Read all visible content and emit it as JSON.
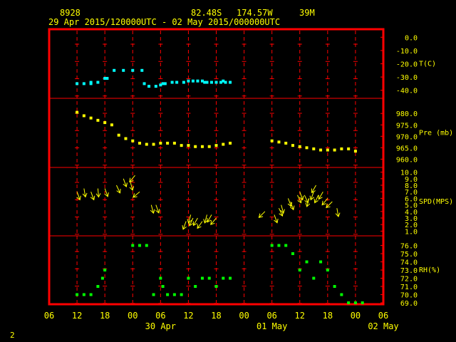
{
  "header": {
    "station_id": "8928",
    "lat": "82.48S",
    "lon": "174.57W",
    "elev": "39M",
    "range": "29 Apr 2015/120000UTC - 02 May 2015/000000UTC"
  },
  "footer": {
    "page": "2"
  },
  "colors": {
    "background": "#000000",
    "frame": "#ff0000",
    "grid": "#ff0000",
    "label": "#ffff00",
    "temp": "#00ffff",
    "pres": "#ffff00",
    "wind": "#ffff00",
    "rh": "#00ff00"
  },
  "chart_data": {
    "type": "scatter",
    "x_axis": {
      "unit": "hours",
      "start_hour": 6,
      "end_hour": 78,
      "tick_every": 6,
      "tick_labels": [
        "06",
        "12",
        "18",
        "00",
        "06",
        "12",
        "18",
        "00",
        "06",
        "12",
        "18",
        "00",
        "06"
      ],
      "day_labels": [
        {
          "text": "30 Apr",
          "hour": 30
        },
        {
          "text": "01 May",
          "hour": 54
        },
        {
          "text": "02 May",
          "hour": 78
        }
      ]
    },
    "panels": [
      {
        "id": "temp",
        "label": "T(C)",
        "range": [
          -45,
          5
        ],
        "ticks": [
          "0.0",
          "-10.0",
          "-20.0",
          "-30.0",
          "-40.0"
        ],
        "tick_values": [
          0,
          -10,
          -20,
          -30,
          -40
        ],
        "series": [
          {
            "marker": "square",
            "x": [
              15,
              12,
              13.5,
              15,
              16.5,
              18,
              18.5,
              20,
              22,
              24,
              26,
              26.5,
              27.5,
              29,
              30,
              30.5,
              31,
              32.5,
              33.5,
              35,
              36,
              37,
              38,
              39,
              39.5,
              40,
              41,
              42,
              43,
              43.5,
              44,
              45
            ],
            "y": [
              -35,
              -35,
              -35,
              -34,
              -34,
              -31,
              -31,
              -25,
              -25,
              -25,
              -25,
              -35,
              -37,
              -37,
              -36,
              -35,
              -35,
              -34,
              -34,
              -34,
              -33,
              -33,
              -33,
              -33,
              -34,
              -34,
              -34,
              -34,
              -34,
              -33,
              -34,
              -34
            ]
          }
        ]
      },
      {
        "id": "pres",
        "label": "Pre (mb)",
        "range": [
          957,
          986
        ],
        "ticks": [
          "980.0",
          "975.0",
          "970.0",
          "965.0",
          "960.0"
        ],
        "tick_values": [
          980,
          975,
          970,
          965,
          960
        ],
        "series": [
          {
            "marker": "square",
            "x": [
              12,
              13.5,
              15,
              16.5,
              18,
              19.5,
              21,
              22.5,
              24,
              25.5,
              27,
              28.5,
              30,
              31.5,
              33,
              34.5,
              36,
              37.5,
              39,
              40.5,
              42,
              43.5,
              45,
              54,
              55.5,
              57,
              58.5,
              60,
              61.5,
              63,
              64.5,
              66,
              67.5,
              69,
              70.5,
              72
            ],
            "y": [
              980.5,
              979,
              978,
              977,
              976,
              975,
              970.5,
              969,
              968,
              967,
              966.5,
              966.5,
              967,
              967,
              967,
              966,
              966,
              965.5,
              965.5,
              965.5,
              966,
              966.5,
              967,
              968,
              967.5,
              967,
              966,
              965.5,
              965,
              964.5,
              964,
              964,
              964,
              964.5,
              964.5,
              963.5
            ]
          }
        ]
      },
      {
        "id": "wind",
        "label": "SPD(MPS)",
        "range": [
          0.5,
          10.5
        ],
        "ticks": [
          "10.0",
          "9.0",
          "8.0",
          "7.0",
          "6.0",
          "5.0",
          "4.0",
          "3.0",
          "2.0",
          "1.0"
        ],
        "tick_values": [
          10,
          9,
          8,
          7,
          6,
          5,
          4,
          3,
          2,
          1
        ],
        "series": [
          {
            "marker": "arrow",
            "x": [
              12,
              13.5,
              15,
              16.5,
              18,
              20.5,
              22,
              23.5,
              24.5,
              25.5,
              28,
              29,
              35.5,
              36.5,
              37,
              38,
              39,
              40,
              41,
              42,
              52.5,
              54.5,
              55.5,
              56,
              57.5,
              58,
              59.5,
              60,
              61,
              62,
              63,
              63.5,
              64,
              65,
              66,
              67,
              68
            ],
            "speed": [
              7,
              7.5,
              7,
              7.5,
              7.5,
              8,
              9,
              8.5,
              9.5,
              7,
              5,
              5,
              2.5,
              3.5,
              3,
              3,
              2.5,
              3.5,
              3.5,
              3,
              4,
              3.5,
              4.5,
              5,
              6,
              5.5,
              6.5,
              7,
              6.5,
              6,
              7,
              8,
              6.5,
              7,
              6,
              5.5,
              4.5
            ],
            "dir_deg": [
              200,
              190,
              200,
              185,
              200,
              205,
              200,
              195,
              140,
              130,
              195,
              200,
              160,
              165,
              155,
              150,
              145,
              165,
              150,
              140,
              135,
              200,
              205,
              195,
              200,
              200,
              205,
              200,
              205,
              165,
              160,
              150,
              155,
              150,
              140,
              135,
              190
            ]
          }
        ]
      },
      {
        "id": "rh",
        "label": "RH(%)",
        "range": [
          69,
          77
        ],
        "ticks": [
          "76.0",
          "75.0",
          "74.0",
          "73.0",
          "72.0",
          "71.0",
          "70.0",
          "69.0"
        ],
        "tick_values": [
          76,
          75,
          74,
          73,
          72,
          71,
          70,
          69
        ],
        "series": [
          {
            "marker": "square",
            "x": [
              12,
              13.5,
              15,
              16.5,
              17.5,
              18,
              24,
              25.5,
              27,
              28.5,
              30,
              30.5,
              31.5,
              33,
              34.5,
              36,
              37.5,
              39,
              40.5,
              42,
              43.5,
              45,
              54,
              55.5,
              57,
              58.5,
              60,
              61.5,
              63,
              64.5,
              66,
              67.5,
              69,
              70.5,
              72,
              73.5
            ],
            "y": [
              70,
              70,
              70,
              71,
              72,
              73,
              76,
              76,
              76,
              70,
              72,
              71,
              70,
              70,
              70,
              72,
              71,
              72,
              72,
              71,
              72,
              72,
              76,
              76,
              76,
              75,
              73,
              74,
              72,
              74,
              73,
              71,
              70,
              69,
              69,
              69
            ]
          }
        ]
      }
    ]
  }
}
